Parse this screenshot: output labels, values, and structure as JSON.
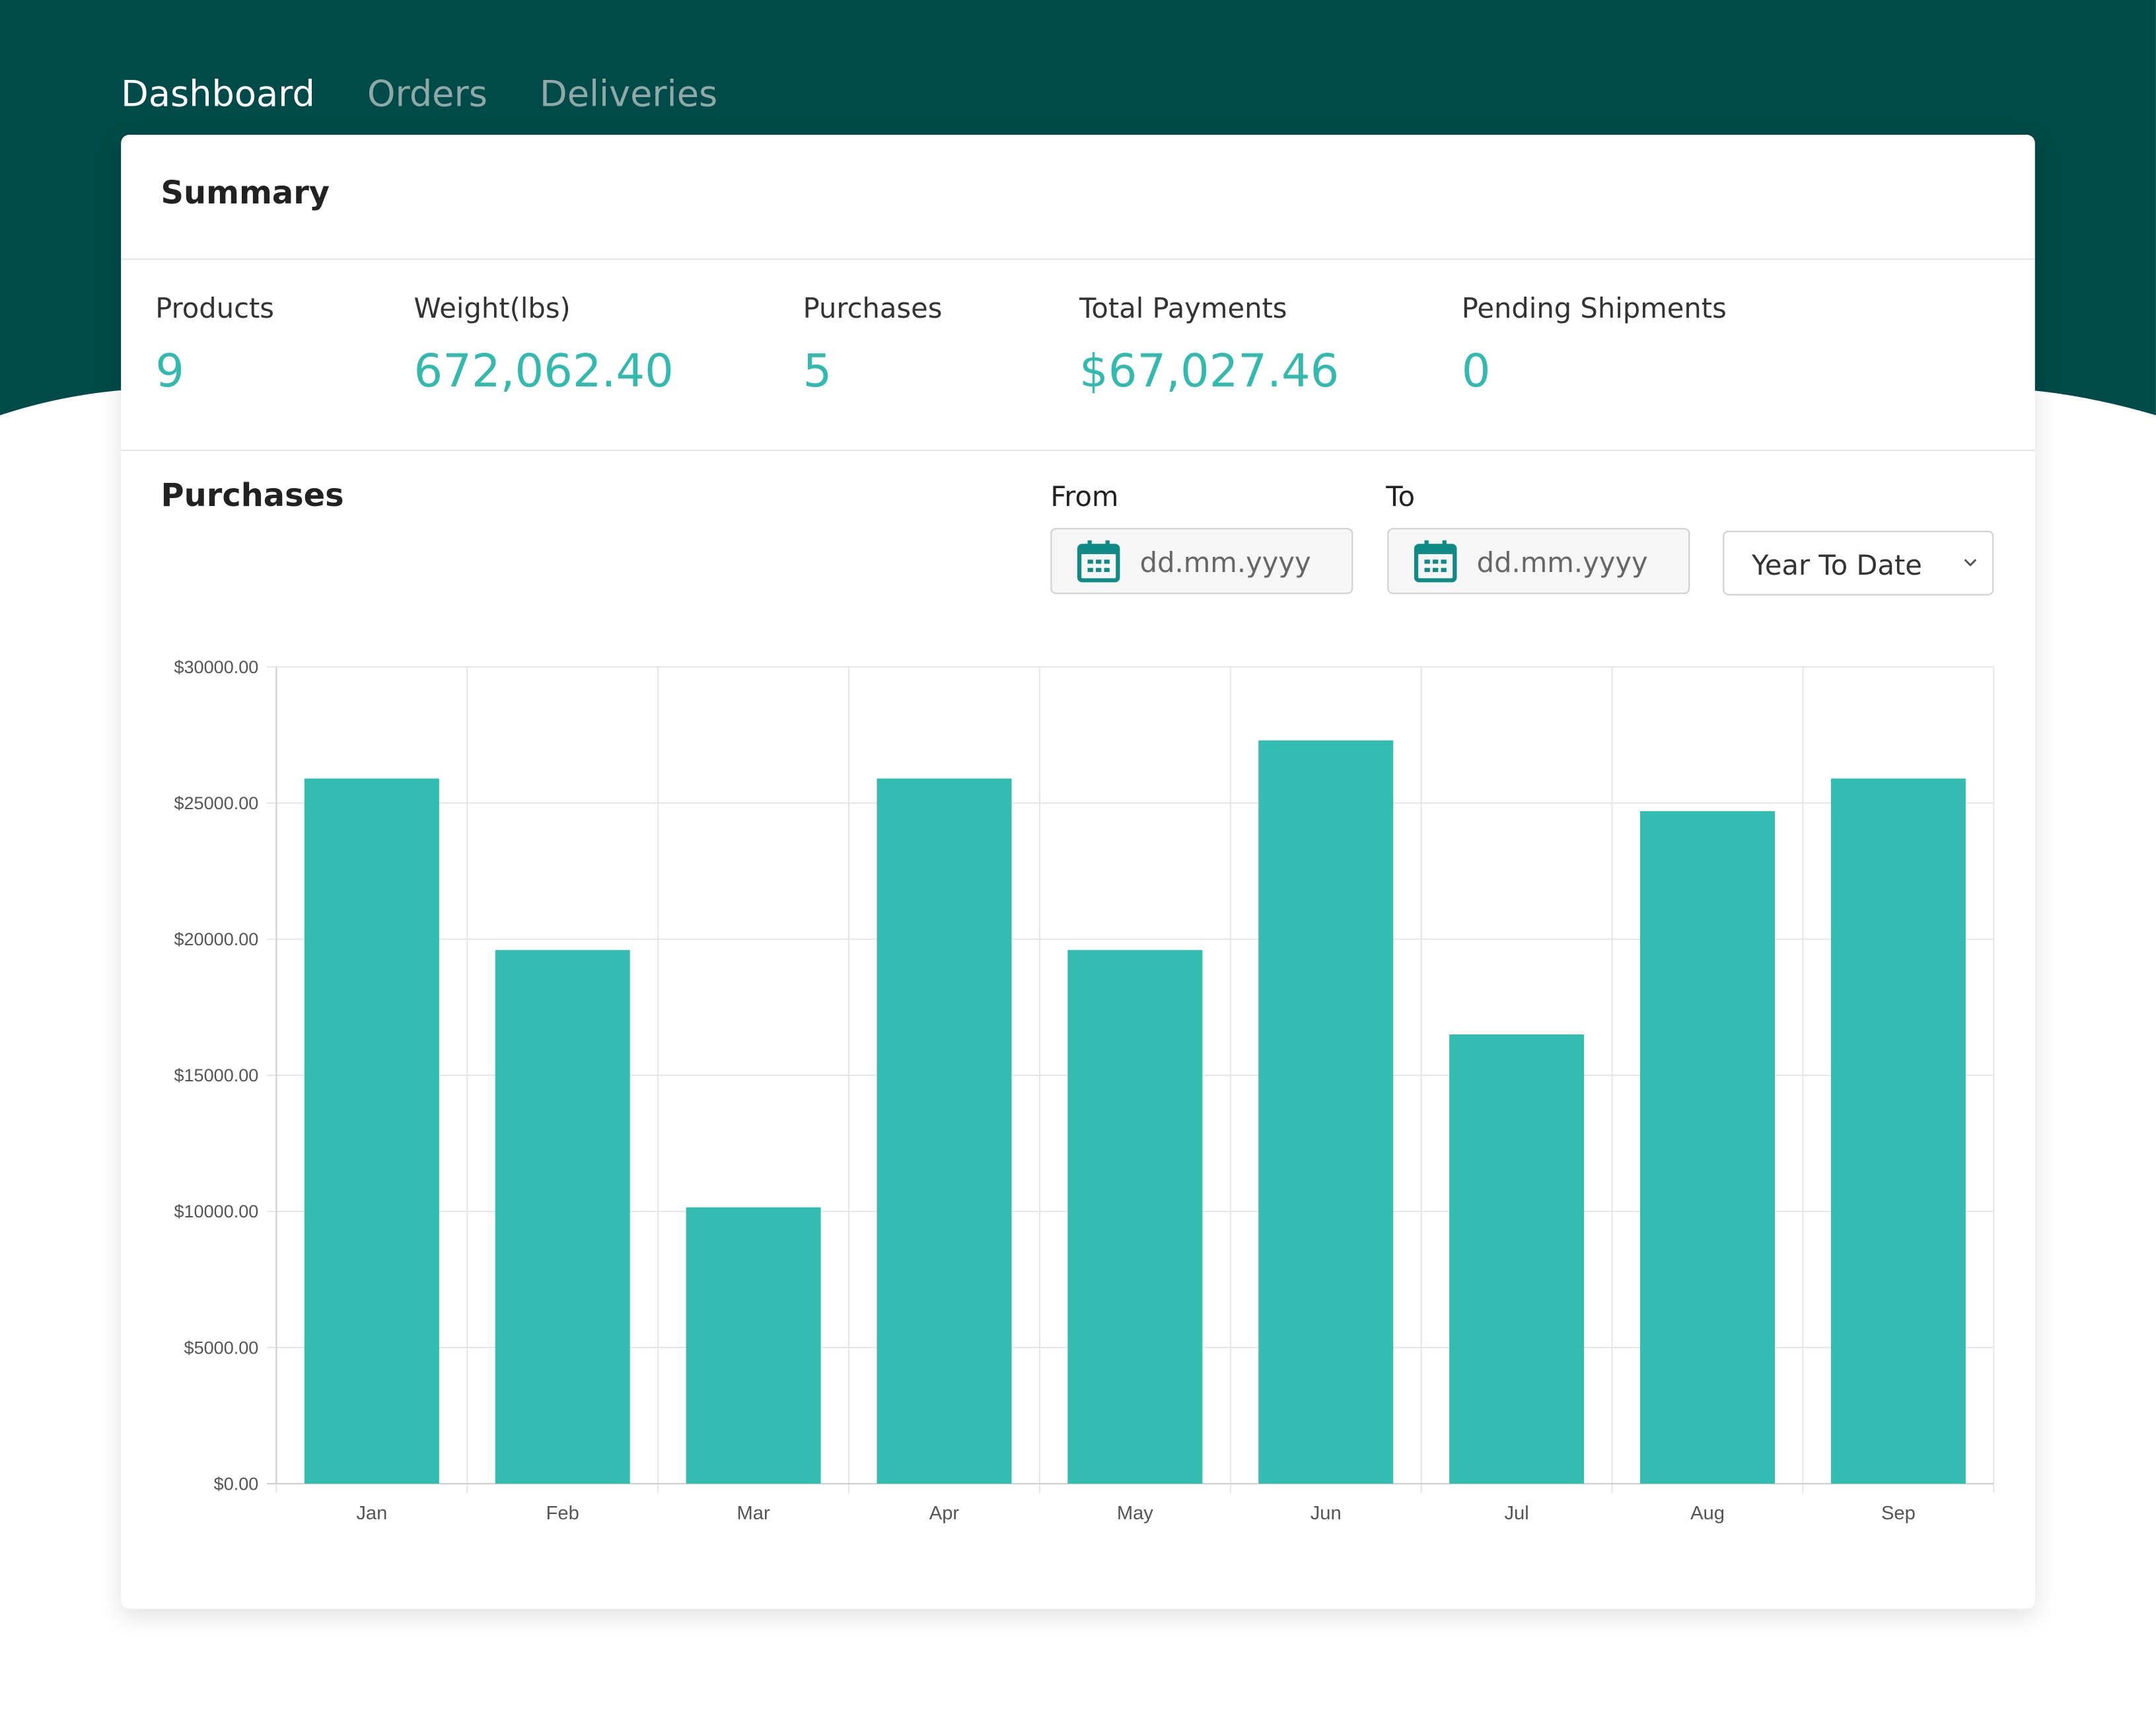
{
  "nav": {
    "tabs": [
      {
        "label": "Dashboard",
        "active": true
      },
      {
        "label": "Orders",
        "active": false
      },
      {
        "label": "Deliveries",
        "active": false
      }
    ]
  },
  "summary": {
    "title": "Summary",
    "stats": [
      {
        "label": "Products",
        "value": "9"
      },
      {
        "label": "Weight(lbs)",
        "value": "672,062.40"
      },
      {
        "label": "Purchases",
        "value": "5"
      },
      {
        "label": "Total Payments",
        "value": "$67,027.46"
      },
      {
        "label": "Pending Shipments",
        "value": "0"
      }
    ]
  },
  "purchases": {
    "title": "Purchases",
    "from_label": "From",
    "to_label": "To",
    "from_placeholder": "dd.mm.yyyy",
    "to_placeholder": "dd.mm.yyyy",
    "range_select": "Year To Date",
    "icons": {
      "calendar": "calendar-icon",
      "dropdown": "chevron-down-icon"
    }
  },
  "colors": {
    "header_bg": "#004a4a",
    "accent": "#33bcb1",
    "nav_inactive": "#8fa9a6"
  },
  "chart_data": {
    "type": "bar",
    "categories": [
      "Jan",
      "Feb",
      "Mar",
      "Apr",
      "May",
      "Jun",
      "Jul",
      "Aug",
      "Sep"
    ],
    "values": [
      25900,
      19600,
      10150,
      25900,
      19600,
      27300,
      16500,
      24700,
      25900
    ],
    "yticks": [
      "$0.00",
      "$5000.00",
      "$10000.00",
      "$15000.00",
      "$20000.00",
      "$25000.00",
      "$30000.00"
    ],
    "ylim": [
      0,
      30000
    ],
    "grid": true,
    "color": "#33bcb1"
  }
}
